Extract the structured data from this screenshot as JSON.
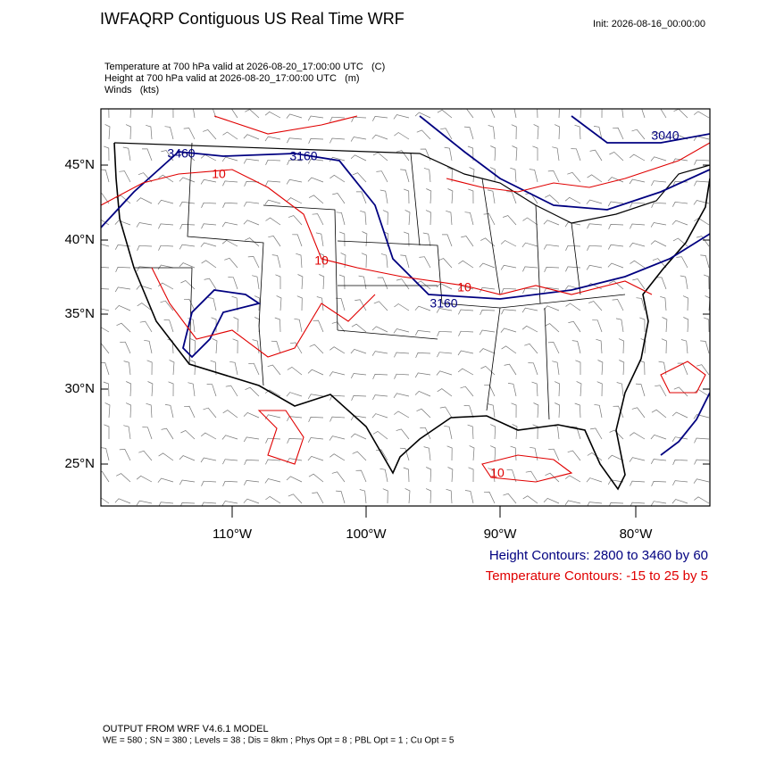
{
  "header": {
    "title": "IWFAQRP Contiguous US Real Time WRF",
    "init": "Init: 2026-08-16_00:00:00"
  },
  "fields": [
    "Temperature at 700 hPa valid at 2026-08-20_17:00:00 UTC   (C)",
    "Height at 700 hPa valid at 2026-08-20_17:00:00 UTC   (m)",
    "Winds   (kts)"
  ],
  "map": {
    "lat_labels": [
      "45°N",
      "40°N",
      "35°N",
      "30°N",
      "25°N"
    ],
    "lon_labels": [
      "110°W",
      "100°W",
      "90°W",
      "80°W"
    ],
    "height_contour_labels": [
      "3460",
      "3160",
      "3160",
      "3040"
    ],
    "temperature_contour_labels": [
      "10",
      "10",
      "10",
      "10"
    ]
  },
  "legend": {
    "height": "Height Contours: 2800 to 3460 by 60",
    "temperature": "Temperature Contours: -15 to 25 by 5"
  },
  "footer": {
    "model": "OUTPUT FROM WRF V4.6.1 MODEL",
    "settings": "WE = 580 ; SN = 380 ; Levels = 38 ; Dis = 8km ; Phys Opt = 8 ; PBL Opt = 1 ; Cu Opt = 5"
  }
}
